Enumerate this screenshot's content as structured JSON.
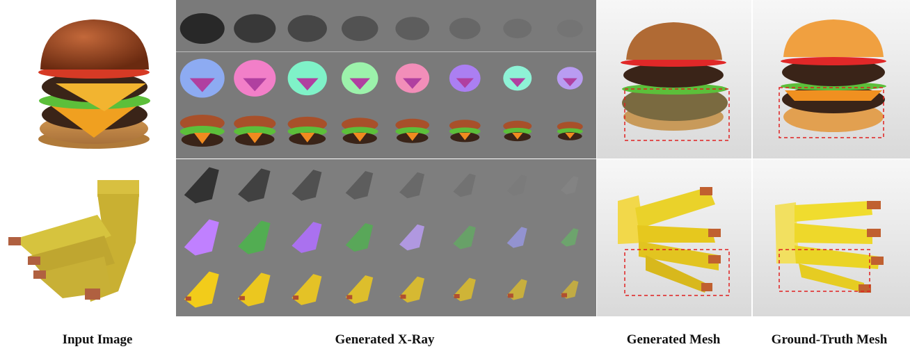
{
  "captions": {
    "input": "Input Image",
    "xray": "Generated X-Ray",
    "gen_mesh": "Generated Mesh",
    "gt_mesh": "Ground-Truth Mesh"
  },
  "rows": [
    {
      "object": "burger",
      "xray_channels": [
        "depth",
        "normal",
        "color"
      ],
      "layers": 8
    },
    {
      "object": "banana",
      "xray_channels": [
        "depth",
        "normal",
        "color"
      ],
      "layers": 8
    }
  ],
  "colors": {
    "highlight_box": "#e02020",
    "bun": "#a0491f",
    "patty": "#3a2418",
    "cheese": "#f0a020",
    "lettuce": "#5cbf3a",
    "banana": "#f2cc1a"
  }
}
